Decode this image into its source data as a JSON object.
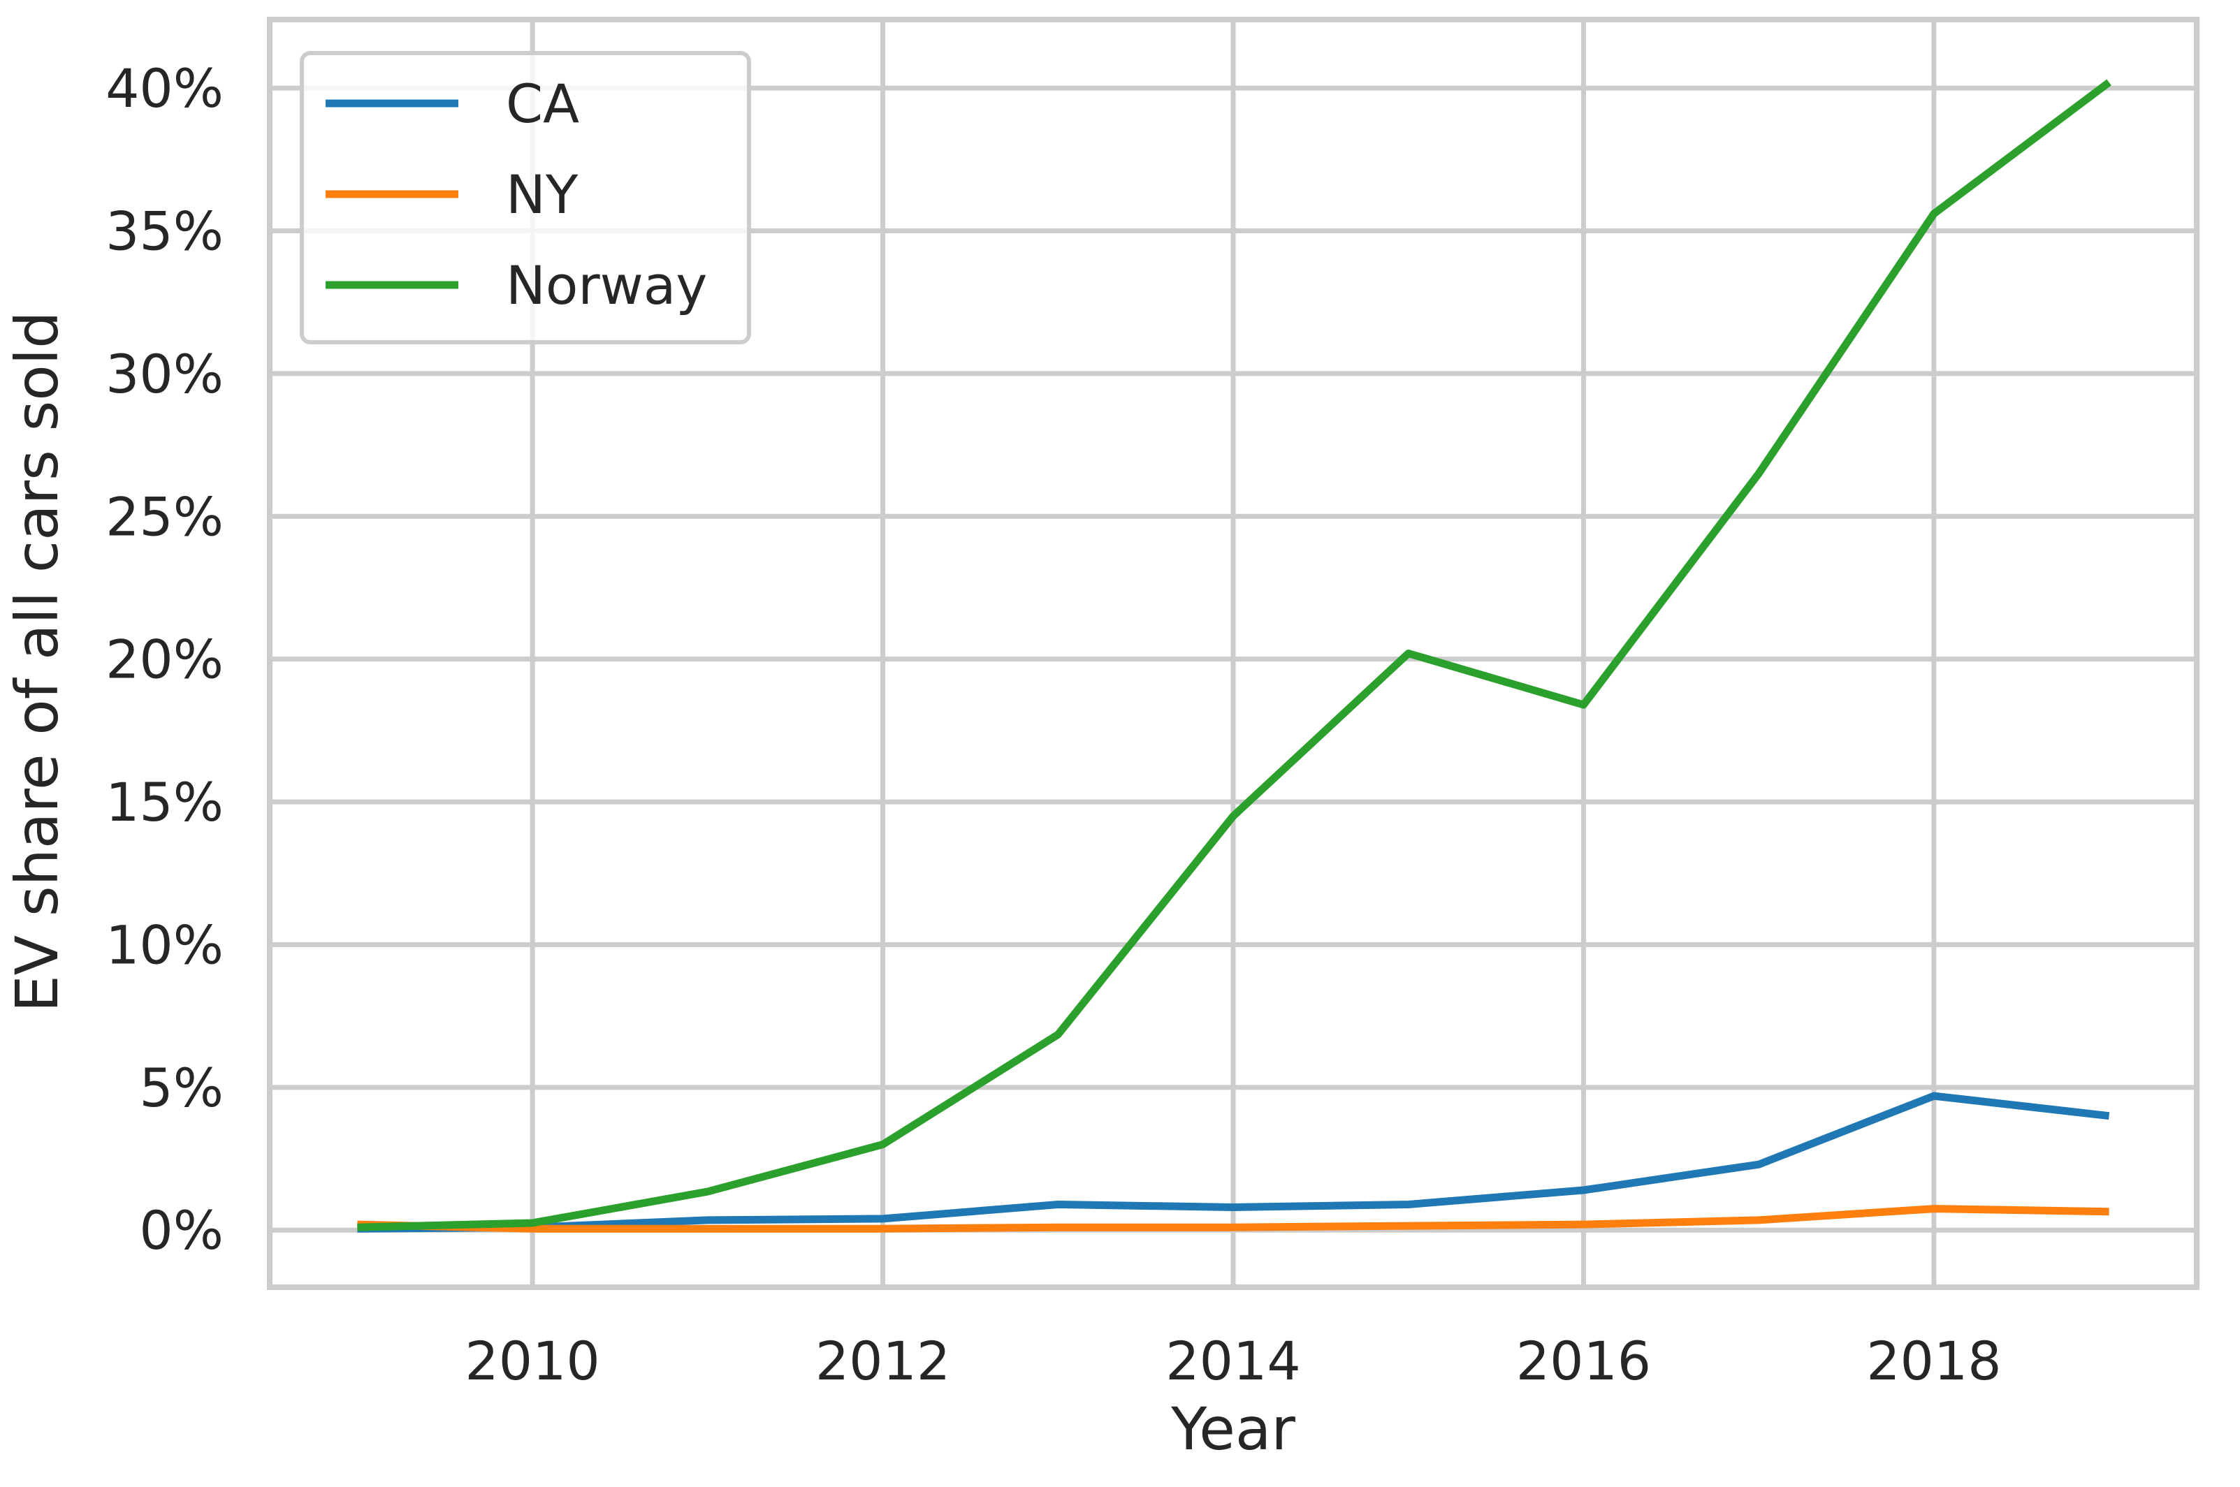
{
  "chart_data": {
    "type": "line",
    "title": "",
    "xlabel": "Year",
    "ylabel": "EV share of all cars sold",
    "x": [
      2009,
      2010,
      2011,
      2012,
      2013,
      2014,
      2015,
      2016,
      2017,
      2018,
      2019
    ],
    "xlim": [
      2008.5,
      2019.5
    ],
    "ylim": [
      -2,
      42.4
    ],
    "x_ticks": [
      2010,
      2012,
      2014,
      2016,
      2018
    ],
    "x_tick_labels": [
      "2010",
      "2012",
      "2014",
      "2016",
      "2018"
    ],
    "y_ticks": [
      0,
      5,
      10,
      15,
      20,
      25,
      30,
      35,
      40
    ],
    "y_tick_labels": [
      "0%",
      "5%",
      "10%",
      "15%",
      "20%",
      "25%",
      "30%",
      "35%",
      "40%"
    ],
    "grid": true,
    "legend_position": "top-left",
    "series": [
      {
        "name": "CA",
        "color": "#1f77b4",
        "values": [
          0.05,
          0.1,
          0.35,
          0.4,
          0.9,
          0.8,
          0.9,
          1.4,
          2.3,
          4.7,
          4.0
        ]
      },
      {
        "name": "NY",
        "color": "#ff7f0e",
        "values": [
          0.2,
          0.05,
          0.05,
          0.05,
          0.1,
          0.1,
          0.15,
          0.2,
          0.35,
          0.75,
          0.65
        ]
      },
      {
        "name": "Norway",
        "color": "#2ca02c",
        "values": [
          0.1,
          0.25,
          1.35,
          3.0,
          6.85,
          14.5,
          20.2,
          18.4,
          26.5,
          35.6,
          40.2
        ]
      }
    ]
  }
}
